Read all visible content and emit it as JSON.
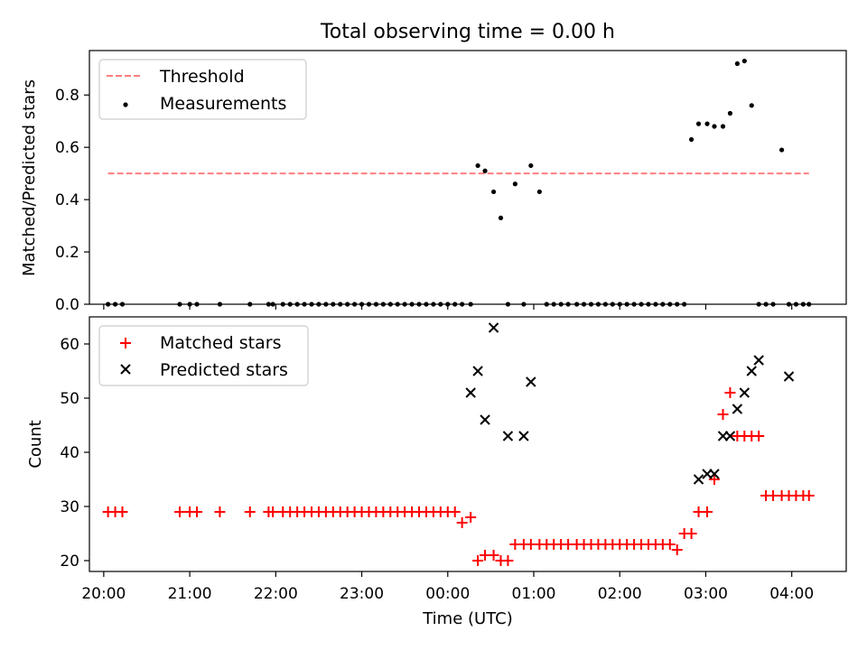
{
  "chart_data": [
    {
      "type": "scatter",
      "title": "Total observing time = 0.00 h",
      "xlabel": "",
      "ylabel": "Matched/Predicted stars",
      "xlim": [
        "19:50",
        "04:38"
      ],
      "ylim": [
        0,
        0.97
      ],
      "yticks": [
        0.0,
        0.2,
        0.4,
        0.6,
        0.8
      ],
      "grid": false,
      "legend": "top-left",
      "threshold": {
        "name": "Threshold",
        "value": 0.5,
        "x": [
          "20:03",
          "04:12"
        ],
        "color": "#ff7f7f",
        "style": "dashed"
      },
      "series": [
        {
          "name": "Measurements",
          "marker": "dot",
          "color": "#000000",
          "x": [
            "20:03",
            "20:08",
            "20:13",
            "20:53",
            "21:00",
            "21:05",
            "21:21",
            "21:42",
            "21:55",
            "21:58",
            "22:05",
            "22:10",
            "22:15",
            "22:20",
            "22:25",
            "22:30",
            "22:35",
            "22:40",
            "22:45",
            "22:50",
            "22:55",
            "23:00",
            "23:05",
            "23:10",
            "23:15",
            "23:20",
            "23:25",
            "23:30",
            "23:35",
            "23:40",
            "23:45",
            "23:50",
            "23:55",
            "00:00",
            "00:05",
            "00:10",
            "00:16",
            "00:21",
            "00:26",
            "00:32",
            "00:37",
            "00:42",
            "00:47",
            "00:53",
            "00:58",
            "01:04",
            "01:09",
            "01:14",
            "01:19",
            "01:24",
            "01:30",
            "01:35",
            "01:40",
            "01:45",
            "01:50",
            "01:55",
            "02:00",
            "02:05",
            "02:10",
            "02:15",
            "02:20",
            "02:25",
            "02:30",
            "02:35",
            "02:40",
            "02:45",
            "02:50",
            "02:55",
            "03:01",
            "03:06",
            "03:12",
            "03:17",
            "03:22",
            "03:27",
            "03:32",
            "03:37",
            "03:42",
            "03:47",
            "03:53",
            "03:58",
            "04:03",
            "04:08",
            "04:12"
          ],
          "y": [
            0,
            0,
            0,
            0,
            0,
            0,
            0,
            0,
            0,
            0,
            0,
            0,
            0,
            0,
            0,
            0,
            0,
            0,
            0,
            0,
            0,
            0,
            0,
            0,
            0,
            0,
            0,
            0,
            0,
            0,
            0,
            0,
            0,
            0,
            0,
            0,
            0,
            0.53,
            0.51,
            0.43,
            0.33,
            0,
            0.46,
            0,
            0.53,
            0.43,
            0,
            0,
            0,
            0,
            0,
            0,
            0,
            0,
            0,
            0,
            0,
            0,
            0,
            0,
            0,
            0,
            0,
            0,
            0,
            0,
            0.63,
            0.69,
            0.69,
            0.68,
            0.68,
            0.73,
            0.92,
            0.93,
            0.76,
            0,
            0,
            0,
            0.59,
            0,
            0,
            0,
            0
          ]
        }
      ]
    },
    {
      "type": "scatter",
      "title": "",
      "xlabel": "Time (UTC)",
      "ylabel": "Count",
      "xlim": [
        "19:50",
        "04:38"
      ],
      "ylim": [
        18,
        65
      ],
      "yticks": [
        20,
        30,
        40,
        50,
        60
      ],
      "xticks": [
        "20:00",
        "21:00",
        "22:00",
        "23:00",
        "00:00",
        "01:00",
        "02:00",
        "03:00",
        "04:00"
      ],
      "grid": false,
      "legend": "top-left",
      "series": [
        {
          "name": "Matched stars",
          "marker": "plus",
          "color": "#ff0000",
          "x": [
            "20:03",
            "20:08",
            "20:13",
            "20:53",
            "21:00",
            "21:05",
            "21:21",
            "21:42",
            "21:55",
            "21:58",
            "22:05",
            "22:10",
            "22:15",
            "22:20",
            "22:25",
            "22:30",
            "22:35",
            "22:40",
            "22:45",
            "22:50",
            "22:55",
            "23:00",
            "23:05",
            "23:10",
            "23:15",
            "23:20",
            "23:25",
            "23:30",
            "23:35",
            "23:40",
            "23:45",
            "23:50",
            "23:55",
            "00:00",
            "00:05",
            "00:10",
            "00:16",
            "00:21",
            "00:26",
            "00:32",
            "00:37",
            "00:42",
            "00:47",
            "00:53",
            "00:58",
            "01:04",
            "01:09",
            "01:14",
            "01:19",
            "01:24",
            "01:30",
            "01:35",
            "01:40",
            "01:45",
            "01:50",
            "01:55",
            "02:00",
            "02:05",
            "02:10",
            "02:15",
            "02:20",
            "02:25",
            "02:30",
            "02:35",
            "02:40",
            "02:45",
            "02:50",
            "02:55",
            "03:01",
            "03:06",
            "03:12",
            "03:17",
            "03:22",
            "03:27",
            "03:32",
            "03:37",
            "03:42",
            "03:47",
            "03:53",
            "03:58",
            "04:03",
            "04:08",
            "04:12"
          ],
          "y": [
            29,
            29,
            29,
            29,
            29,
            29,
            29,
            29,
            29,
            29,
            29,
            29,
            29,
            29,
            29,
            29,
            29,
            29,
            29,
            29,
            29,
            29,
            29,
            29,
            29,
            29,
            29,
            29,
            29,
            29,
            29,
            29,
            29,
            29,
            29,
            27,
            28,
            20,
            21,
            21,
            20,
            20,
            23,
            23,
            23,
            23,
            23,
            23,
            23,
            23,
            23,
            23,
            23,
            23,
            23,
            23,
            23,
            23,
            23,
            23,
            23,
            23,
            23,
            23,
            22,
            25,
            25,
            29,
            29,
            35,
            47,
            51,
            43,
            43,
            43,
            43,
            32,
            32,
            32,
            32,
            32,
            32,
            32
          ]
        },
        {
          "name": "Predicted stars",
          "marker": "x",
          "color": "#000000",
          "x": [
            "00:16",
            "00:21",
            "00:26",
            "00:32",
            "00:42",
            "00:53",
            "00:58",
            "02:55",
            "03:01",
            "03:06",
            "03:12",
            "03:17",
            "03:22",
            "03:27",
            "03:32",
            "03:37",
            "03:58"
          ],
          "y": [
            51,
            55,
            46,
            63,
            43,
            43,
            53,
            35,
            36,
            36,
            43,
            43,
            48,
            51,
            55,
            57,
            54
          ]
        }
      ]
    }
  ]
}
